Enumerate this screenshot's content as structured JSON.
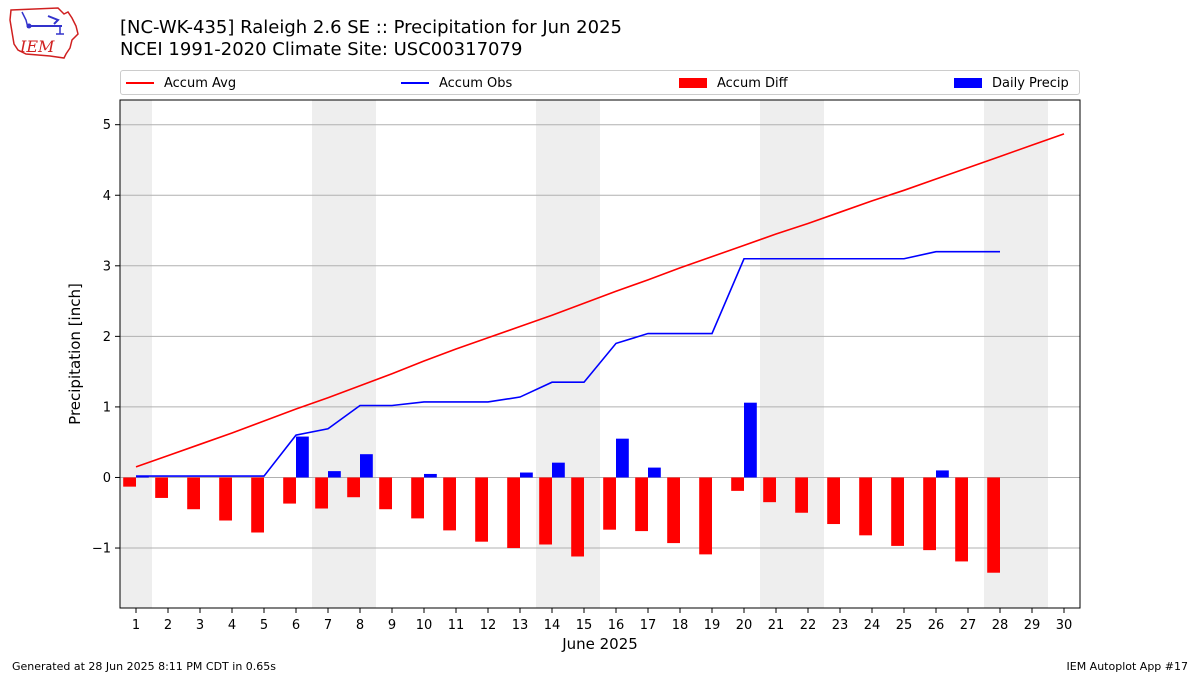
{
  "header": {
    "title_line1": "[NC-WK-435] Raleigh 2.6 SE :: Precipitation for Jun 2025",
    "title_line2": "NCEI 1991-2020 Climate Site: USC00317079",
    "logo_text": "IEM"
  },
  "legend": {
    "placement": "top",
    "items": [
      {
        "label": "Accum Avg",
        "kind": "line",
        "color": "#ff0000"
      },
      {
        "label": "Accum Obs",
        "kind": "line",
        "color": "#0000ff"
      },
      {
        "label": "Accum Diff",
        "kind": "bar",
        "color": "#ff0000"
      },
      {
        "label": "Daily Precip",
        "kind": "bar",
        "color": "#0000ff"
      }
    ]
  },
  "footer": {
    "left": "Generated at 28 Jun 2025 8:11 PM CDT in 0.65s",
    "right": "IEM Autoplot App #17"
  },
  "chart_data": {
    "type": "bar",
    "xlabel": "June 2025",
    "ylabel": "Precipitation [inch]",
    "xlim": [
      0.5,
      30.5
    ],
    "ylim": [
      -1.85,
      5.35
    ],
    "x_ticks": [
      1,
      2,
      3,
      4,
      5,
      6,
      7,
      8,
      9,
      10,
      11,
      12,
      13,
      14,
      15,
      16,
      17,
      18,
      19,
      20,
      21,
      22,
      23,
      24,
      25,
      26,
      27,
      28,
      29,
      30
    ],
    "y_ticks": [
      -1,
      0,
      1,
      2,
      3,
      4,
      5
    ],
    "grid": "y",
    "weekend_shading": [
      [
        0.5,
        1.5
      ],
      [
        6.5,
        8.5
      ],
      [
        13.5,
        15.5
      ],
      [
        20.5,
        22.5
      ],
      [
        27.5,
        29.5
      ]
    ],
    "days": [
      1,
      2,
      3,
      4,
      5,
      6,
      7,
      8,
      9,
      10,
      11,
      12,
      13,
      14,
      15,
      16,
      17,
      18,
      19,
      20,
      21,
      22,
      23,
      24,
      25,
      26,
      27,
      28,
      29,
      30
    ],
    "series": [
      {
        "name": "Accum Avg",
        "type": "line",
        "color": "#ff0000",
        "values": [
          0.15,
          0.31,
          0.47,
          0.63,
          0.8,
          0.97,
          1.13,
          1.3,
          1.47,
          1.65,
          1.82,
          1.98,
          2.14,
          2.3,
          2.47,
          2.64,
          2.8,
          2.97,
          3.13,
          3.29,
          3.45,
          3.6,
          3.76,
          3.92,
          4.07,
          4.23,
          4.39,
          4.55,
          4.71,
          4.87
        ]
      },
      {
        "name": "Accum Obs",
        "type": "line",
        "color": "#0000ff",
        "values": [
          0.02,
          0.02,
          0.02,
          0.02,
          0.02,
          0.6,
          0.69,
          1.02,
          1.02,
          1.07,
          1.07,
          1.07,
          1.14,
          1.35,
          1.35,
          1.9,
          2.04,
          2.04,
          2.04,
          3.1,
          3.1,
          3.1,
          3.1,
          3.1,
          3.1,
          3.2,
          3.2,
          3.2
        ]
      },
      {
        "name": "Accum Diff",
        "type": "bar",
        "color": "#ff0000",
        "values": [
          -0.13,
          -0.29,
          -0.45,
          -0.61,
          -0.78,
          -0.37,
          -0.44,
          -0.28,
          -0.45,
          -0.58,
          -0.75,
          -0.91,
          -1.0,
          -0.95,
          -1.12,
          -0.74,
          -0.76,
          -0.93,
          -1.09,
          -0.19,
          -0.35,
          -0.5,
          -0.66,
          -0.82,
          -0.97,
          -1.03,
          -1.19,
          -1.35
        ]
      },
      {
        "name": "Daily Precip",
        "type": "bar",
        "color": "#0000ff",
        "values": [
          0.02,
          0,
          0,
          0,
          0,
          0.58,
          0.09,
          0.33,
          0,
          0.05,
          0,
          0,
          0.07,
          0.21,
          0,
          0.55,
          0.14,
          0,
          0,
          1.06,
          0,
          0,
          0,
          0,
          0,
          0.1,
          0,
          0
        ]
      }
    ]
  }
}
